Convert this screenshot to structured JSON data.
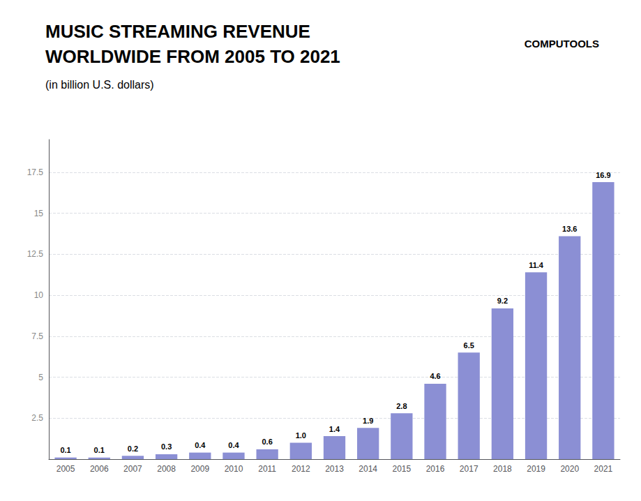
{
  "chart_data": {
    "type": "bar",
    "title": "MUSIC STREAMING REVENUE\nWORLDWIDE FROM 2005 TO 2021",
    "subtitle": "(in billion U.S. dollars)",
    "annotations": [
      "COMPUTOOLS"
    ],
    "categories": [
      "2005",
      "2006",
      "2007",
      "2008",
      "2009",
      "2010",
      "2011",
      "2012",
      "2013",
      "2014",
      "2015",
      "2016",
      "2017",
      "2018",
      "2019",
      "2020",
      "2021"
    ],
    "values": [
      0.1,
      0.1,
      0.2,
      0.3,
      0.4,
      0.4,
      0.6,
      1.0,
      1.4,
      1.9,
      2.8,
      4.6,
      6.5,
      9.2,
      11.4,
      13.6,
      16.9
    ],
    "value_labels": [
      "0.1",
      "0.1",
      "0.2",
      "0.3",
      "0.4",
      "0.4",
      "0.6",
      "1.0",
      "1.4",
      "1.9",
      "2.8",
      "4.6",
      "6.5",
      "9.2",
      "11.4",
      "13.6",
      "16.9"
    ],
    "color": "#8B8FD4",
    "ylim": [
      0,
      19.5
    ],
    "yticks": [
      {
        "value": 0,
        "label": ""
      },
      2.5,
      5,
      7.5,
      10,
      12.5,
      15,
      17.5
    ],
    "grid": true,
    "data_labels": true
  }
}
